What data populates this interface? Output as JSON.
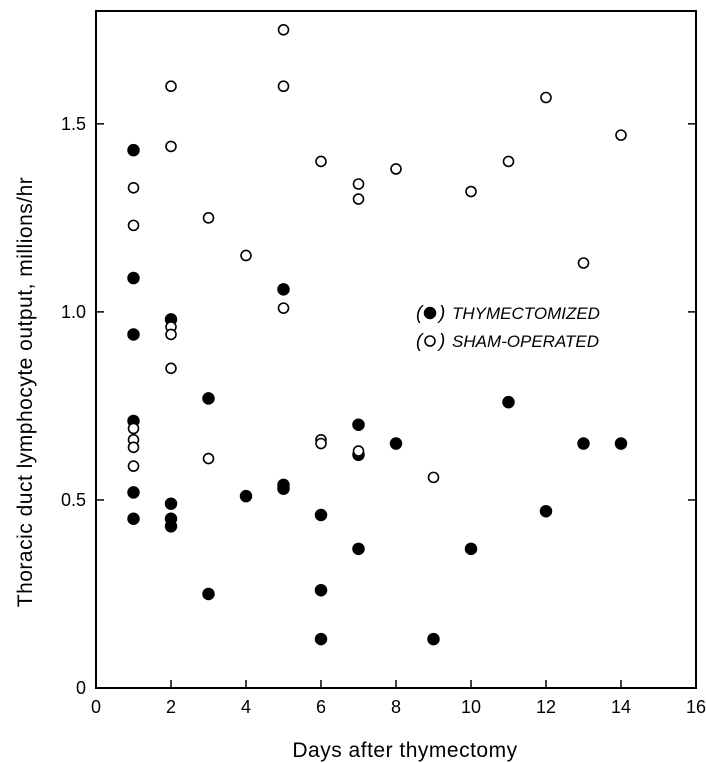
{
  "chart_data": {
    "type": "scatter",
    "title": "",
    "xlabel": "Days after thymectomy",
    "ylabel": "Thoracic duct lymphocyte output, millions/hr",
    "xlim": [
      0,
      16
    ],
    "ylim": [
      0,
      1.8
    ],
    "xticks": [
      0,
      2,
      4,
      6,
      8,
      10,
      12,
      14,
      16
    ],
    "xtick_labels": [
      "0",
      "2",
      "4",
      "6",
      "8",
      "10",
      "12",
      "14",
      "16"
    ],
    "yticks": [
      0,
      0.5,
      1.0,
      1.5
    ],
    "ytick_labels": [
      "0",
      "0.5",
      "1.0",
      "1.5"
    ],
    "grid": false,
    "legend_position": "center-right",
    "series": [
      {
        "name": "THYMECTOMIZED",
        "marker": "filled-circle",
        "color": "#000000",
        "points": [
          [
            1,
            1.43
          ],
          [
            1,
            1.09
          ],
          [
            1,
            0.94
          ],
          [
            1,
            0.71
          ],
          [
            1,
            0.52
          ],
          [
            1,
            0.45
          ],
          [
            2,
            0.98
          ],
          [
            2,
            0.49
          ],
          [
            2,
            0.45
          ],
          [
            2,
            0.43
          ],
          [
            3,
            0.77
          ],
          [
            3,
            0.25
          ],
          [
            4,
            0.51
          ],
          [
            5,
            1.06
          ],
          [
            5,
            0.54
          ],
          [
            5,
            0.53
          ],
          [
            6,
            0.46
          ],
          [
            6,
            0.26
          ],
          [
            6,
            0.13
          ],
          [
            7,
            0.7
          ],
          [
            7,
            0.62
          ],
          [
            7,
            0.37
          ],
          [
            8,
            0.65
          ],
          [
            9,
            0.13
          ],
          [
            10,
            0.37
          ],
          [
            11,
            0.76
          ],
          [
            12,
            0.47
          ],
          [
            13,
            0.65
          ],
          [
            14,
            0.65
          ]
        ]
      },
      {
        "name": "SHAM-OPERATED",
        "marker": "open-circle",
        "color": "#000000",
        "points": [
          [
            1,
            1.33
          ],
          [
            1,
            1.23
          ],
          [
            1,
            0.69
          ],
          [
            1,
            0.66
          ],
          [
            1,
            0.64
          ],
          [
            1,
            0.59
          ],
          [
            2,
            1.6
          ],
          [
            2,
            1.44
          ],
          [
            2,
            0.96
          ],
          [
            2,
            0.94
          ],
          [
            2,
            0.85
          ],
          [
            3,
            1.25
          ],
          [
            3,
            0.61
          ],
          [
            4,
            1.15
          ],
          [
            5,
            1.75
          ],
          [
            5,
            1.6
          ],
          [
            5,
            1.01
          ],
          [
            6,
            1.4
          ],
          [
            6,
            0.66
          ],
          [
            6,
            0.65
          ],
          [
            7,
            1.34
          ],
          [
            7,
            1.3
          ],
          [
            7,
            0.63
          ],
          [
            8,
            1.38
          ],
          [
            9,
            0.56
          ],
          [
            10,
            1.32
          ],
          [
            11,
            1.4
          ],
          [
            12,
            1.57
          ],
          [
            13,
            1.13
          ],
          [
            14,
            1.47
          ]
        ]
      }
    ]
  },
  "legend": {
    "open_paren": "(",
    "close_paren": ")",
    "items": [
      {
        "label": "THYMECTOMIZED"
      },
      {
        "label": "SHAM-OPERATED"
      }
    ]
  }
}
